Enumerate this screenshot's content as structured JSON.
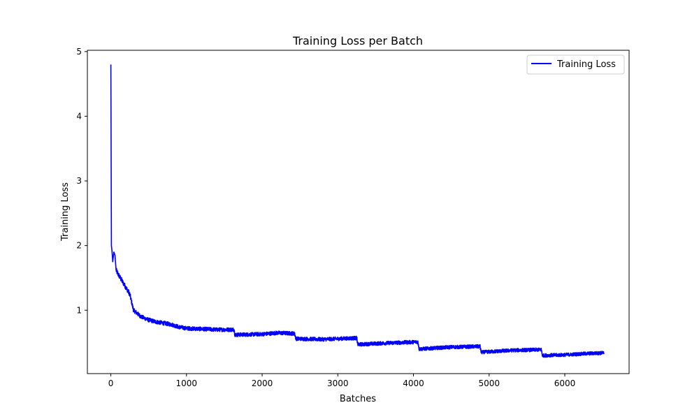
{
  "chart_data": {
    "type": "line",
    "title": "Training Loss per Batch",
    "xlabel": "Batches",
    "ylabel": "Training Loss",
    "xlim": [
      -310,
      6850
    ],
    "ylim": [
      0.02,
      5.02
    ],
    "xticks": [
      0,
      1000,
      2000,
      3000,
      4000,
      5000,
      6000
    ],
    "yticks": [
      1,
      2,
      3,
      4,
      5
    ],
    "grid": false,
    "legend": {
      "position": "top-right"
    },
    "series": [
      {
        "name": "Training Loss",
        "color": "#0000ff",
        "noise_amplitude": 0.04,
        "points": [
          [
            0,
            4.8
          ],
          [
            2,
            4.1
          ],
          [
            5,
            3.0
          ],
          [
            8,
            2.0
          ],
          [
            15,
            1.92
          ],
          [
            25,
            1.75
          ],
          [
            40,
            1.9
          ],
          [
            55,
            1.85
          ],
          [
            70,
            1.62
          ],
          [
            100,
            1.55
          ],
          [
            150,
            1.45
          ],
          [
            200,
            1.35
          ],
          [
            250,
            1.25
          ],
          [
            300,
            1.0
          ],
          [
            400,
            0.9
          ],
          [
            500,
            0.85
          ],
          [
            600,
            0.82
          ],
          [
            700,
            0.8
          ],
          [
            800,
            0.78
          ],
          [
            900,
            0.74
          ],
          [
            1000,
            0.72
          ],
          [
            1200,
            0.71
          ],
          [
            1400,
            0.7
          ],
          [
            1630,
            0.7
          ],
          [
            1640,
            0.62
          ],
          [
            2000,
            0.63
          ],
          [
            2200,
            0.65
          ],
          [
            2430,
            0.64
          ],
          [
            2445,
            0.56
          ],
          [
            2800,
            0.55
          ],
          [
            3250,
            0.57
          ],
          [
            3265,
            0.47
          ],
          [
            3600,
            0.49
          ],
          [
            4060,
            0.51
          ],
          [
            4075,
            0.4
          ],
          [
            4500,
            0.43
          ],
          [
            4880,
            0.44
          ],
          [
            4895,
            0.35
          ],
          [
            5300,
            0.38
          ],
          [
            5690,
            0.39
          ],
          [
            5705,
            0.3
          ],
          [
            6000,
            0.31
          ],
          [
            6300,
            0.33
          ],
          [
            6520,
            0.34
          ]
        ]
      }
    ]
  }
}
